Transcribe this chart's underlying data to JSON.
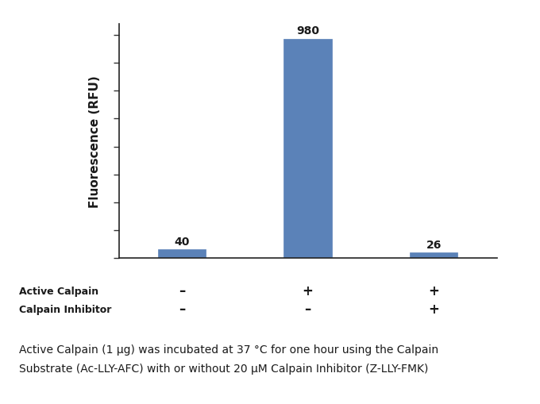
{
  "values": [
    40,
    980,
    26
  ],
  "bar_color": "#5b82b8",
  "bar_width": 0.38,
  "bar_positions": [
    1,
    2,
    3
  ],
  "ylim": [
    0,
    1050
  ],
  "ylabel": "Fluorescence (RFU)",
  "ylabel_fontsize": 11,
  "value_labels": [
    "40",
    "980",
    "26"
  ],
  "active_calpain_signs": [
    "–",
    "+",
    "+"
  ],
  "calpain_inhibitor_signs": [
    "–",
    "–",
    "+"
  ],
  "row_label_1": "Active Calpain",
  "row_label_2": "Calpain Inhibitor",
  "caption_line1": "Active Calpain (1 μg) was incubated at 37 °C for one hour using the Calpain",
  "caption_line2": "Substrate (Ac-LLY-AFC) with or without 20 μM Calpain Inhibitor (Z-LLY-FMK)",
  "n_yticks": 9,
  "background_color": "#ffffff",
  "text_color": "#1a1a1a",
  "sign_fontsize": 12,
  "row_label_fontsize": 9,
  "caption_fontsize": 10,
  "bar_label_fontsize": 10
}
